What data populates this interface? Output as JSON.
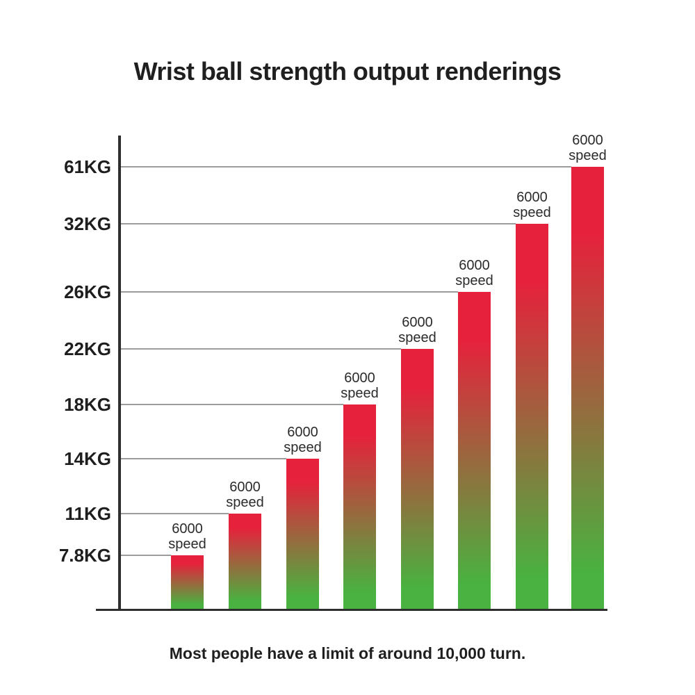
{
  "chart_data": {
    "type": "bar",
    "title": "Wrist ball strength output renderings",
    "caption": "Most people have a limit of around 10,000 turn.",
    "xlabel": "",
    "ylabel": "",
    "legend": "none",
    "grid": "horizontal gridline per tick, running from y-axis to the matching bar's left edge",
    "y_axis": {
      "tick_labels": [
        "61KG",
        "32KG",
        "26KG",
        "22KG",
        "18KG",
        "14KG",
        "11KG",
        "7.8KG"
      ],
      "tick_values_kg": [
        61,
        32,
        26,
        22,
        18,
        14,
        11,
        7.8
      ],
      "scale": "equal-spaced categorical (non-linear in KG)"
    },
    "values_kg": [
      7.8,
      11,
      14,
      18,
      22,
      26,
      32,
      61
    ],
    "bar_count": 8,
    "bar_label": {
      "line1": "6000",
      "line2": "speed"
    },
    "bar_label_text": "6000 speed",
    "colors": {
      "bar_gradient_top": "#e6213c",
      "bar_gradient_bottom": "#49b240",
      "gridline": "#9c9c9c",
      "axis": "#2e2e2e",
      "title_text": "#1f1f1f",
      "label_text": "#2b2b2b",
      "background": "#ffffff"
    }
  }
}
